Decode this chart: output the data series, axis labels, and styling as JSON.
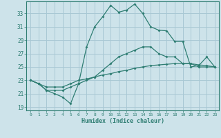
{
  "xlabel": "Humidex (Indice chaleur)",
  "bg_color": "#cde3ea",
  "grid_color": "#a8c8d4",
  "line_color": "#2e7d72",
  "x_values": [
    0,
    1,
    2,
    3,
    4,
    5,
    6,
    7,
    8,
    9,
    10,
    11,
    12,
    13,
    14,
    15,
    16,
    17,
    18,
    19,
    20,
    21,
    22,
    23
  ],
  "line1": [
    23,
    22.5,
    21.5,
    21,
    20.5,
    19.5,
    22.5,
    28.0,
    31.0,
    32.5,
    34.2,
    33.2,
    33.5,
    34.4,
    33.0,
    31.0,
    30.5,
    30.4,
    28.8,
    28.8,
    25.0,
    25.2,
    26.5,
    25.0
  ],
  "line2": [
    23,
    22.5,
    21.5,
    21.5,
    21.5,
    22.0,
    22.5,
    23.0,
    23.5,
    24.5,
    25.5,
    26.5,
    27.0,
    27.5,
    28.0,
    28.0,
    27.0,
    26.5,
    26.5,
    25.5,
    25.5,
    25.0,
    25.0,
    25.0
  ],
  "line3": [
    23,
    22.5,
    22.0,
    22.0,
    22.0,
    22.5,
    23.0,
    23.2,
    23.5,
    23.8,
    24.0,
    24.3,
    24.5,
    24.8,
    25.0,
    25.2,
    25.3,
    25.4,
    25.5,
    25.5,
    25.5,
    25.3,
    25.2,
    25.0
  ],
  "ylim": [
    18.5,
    34.8
  ],
  "xlim": [
    -0.5,
    23.5
  ],
  "yticks": [
    19,
    21,
    23,
    25,
    27,
    29,
    31,
    33
  ],
  "xticks": [
    0,
    1,
    2,
    3,
    4,
    5,
    6,
    7,
    8,
    9,
    10,
    11,
    12,
    13,
    14,
    15,
    16,
    17,
    18,
    19,
    20,
    21,
    22,
    23
  ]
}
